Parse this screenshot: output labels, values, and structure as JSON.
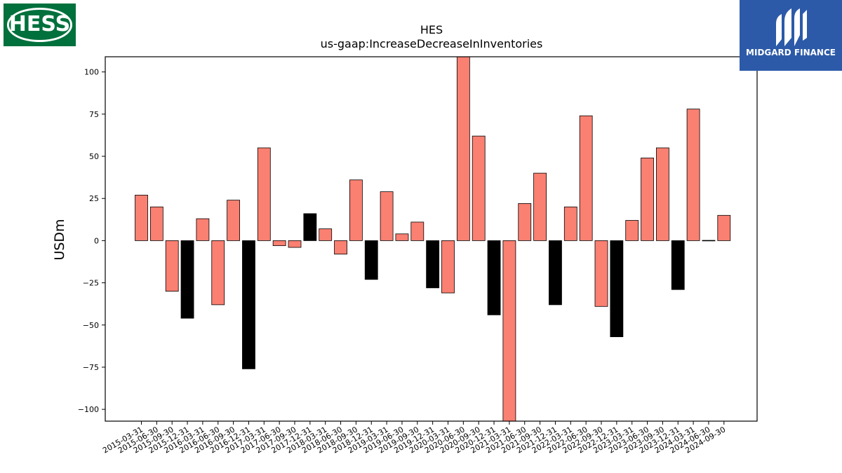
{
  "logos": {
    "company": "HESS",
    "publisher": "MIDGARD FINANCE"
  },
  "chart_data": {
    "type": "bar",
    "title": "HES",
    "subtitle": "us-gaap:IncreaseDecreaseInInventories",
    "ylabel": "USDm",
    "xlabel": "",
    "ylim": [
      -107,
      109
    ],
    "yticks": [
      100,
      75,
      50,
      25,
      0,
      -25,
      -50,
      -75,
      -100
    ],
    "ytick_labels": [
      "100",
      "75",
      "50",
      "25",
      "0",
      "−25",
      "−50",
      "−75",
      "−100"
    ],
    "grid": false,
    "legend": "none",
    "colors": {
      "default": "#fa8072",
      "q4": "#000000",
      "edge": "#000000"
    },
    "categories": [
      "2015-03-31",
      "2015-06-30",
      "2015-09-30",
      "2015-12-31",
      "2016-03-31",
      "2016-06-30",
      "2016-09-30",
      "2016-12-31",
      "2017-03-31",
      "2017-06-30",
      "2017-09-30",
      "2017-12-31",
      "2018-03-31",
      "2018-06-30",
      "2018-09-30",
      "2018-12-31",
      "2019-03-31",
      "2019-06-30",
      "2019-09-30",
      "2019-12-31",
      "2020-03-31",
      "2020-06-30",
      "2020-09-30",
      "2020-12-31",
      "2021-03-31",
      "2021-06-30",
      "2021-09-30",
      "2021-12-31",
      "2022-03-31",
      "2022-06-30",
      "2022-09-30",
      "2022-12-31",
      "2023-03-31",
      "2023-06-30",
      "2023-09-30",
      "2023-12-31",
      "2024-03-31",
      "2024-06-30",
      "2024-09-30"
    ],
    "values": [
      27,
      20,
      -30,
      -46,
      13,
      -38,
      24,
      -76,
      55,
      -3,
      -4,
      16,
      7,
      -8,
      36,
      -23,
      29,
      4,
      11,
      -28,
      -31,
      110,
      62,
      -44,
      -110,
      22,
      40,
      -38,
      20,
      74,
      -39,
      -57,
      12,
      49,
      55,
      -29,
      78,
      0,
      15
    ],
    "bar_colors": [
      "#fa8072",
      "#fa8072",
      "#fa8072",
      "#000000",
      "#fa8072",
      "#fa8072",
      "#fa8072",
      "#000000",
      "#fa8072",
      "#fa8072",
      "#fa8072",
      "#000000",
      "#fa8072",
      "#fa8072",
      "#fa8072",
      "#000000",
      "#fa8072",
      "#fa8072",
      "#fa8072",
      "#000000",
      "#fa8072",
      "#fa8072",
      "#fa8072",
      "#000000",
      "#fa8072",
      "#fa8072",
      "#fa8072",
      "#000000",
      "#fa8072",
      "#fa8072",
      "#fa8072",
      "#000000",
      "#fa8072",
      "#fa8072",
      "#fa8072",
      "#000000",
      "#fa8072",
      "#fa8072",
      "#fa8072"
    ]
  }
}
